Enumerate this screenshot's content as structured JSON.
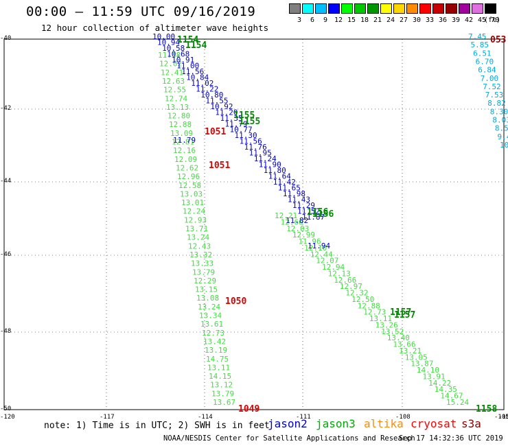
{
  "header": {
    "title": "00:00 – 11:59 UTC 09/16/2019",
    "subtitle": "12 hour collection of altimeter wave heights"
  },
  "legend": {
    "unit": "(ft)",
    "bins": [
      {
        "label": "3",
        "color": "#7f7f7f"
      },
      {
        "label": "6",
        "color": "#00ffff"
      },
      {
        "label": "9",
        "color": "#00bfff"
      },
      {
        "label": "12",
        "color": "#0000ff"
      },
      {
        "label": "15",
        "color": "#00ff00"
      },
      {
        "label": "18",
        "color": "#00c800"
      },
      {
        "label": "21",
        "color": "#009600"
      },
      {
        "label": "24",
        "color": "#ffff00"
      },
      {
        "label": "27",
        "color": "#ffd700"
      },
      {
        "label": "30",
        "color": "#ff8c00"
      },
      {
        "label": "33",
        "color": "#ff0000"
      },
      {
        "label": "36",
        "color": "#c80000"
      },
      {
        "label": "39",
        "color": "#960000"
      },
      {
        "label": "42",
        "color": "#a000a0"
      },
      {
        "label": "45",
        "color": "#e070e0"
      },
      {
        "label": "70",
        "color": "#000000"
      }
    ]
  },
  "axes": {
    "lat_labels": [
      "-40",
      "-42",
      "-44",
      "-46",
      "-48",
      "-50"
    ],
    "bottom_left": "-120",
    "lon_labels": [
      "-117",
      "-114",
      "-111",
      "-108",
      "-105"
    ],
    "right_edge": "-10"
  },
  "footer": {
    "note": "note: 1) Time is in UTC; 2) SWH is in feet",
    "sats": [
      {
        "label": "jason2",
        "color": "#0000cc"
      },
      {
        "label": "jason3",
        "color": "#00aa00"
      },
      {
        "label": "altika",
        "color": "#ff8c00"
      },
      {
        "label": "cryosat",
        "color": "#ff0000"
      },
      {
        "label": "s3a",
        "color": "#8b0000"
      }
    ],
    "credit": "NOAA/NESDIS Center for Satellite Applications and Research",
    "timestamp": "Sep 17 14:32:36 UTC 2019"
  },
  "tracks": [
    {
      "name": "jason3-east",
      "color": "#40dd40",
      "values": [
        "12.21",
        "12.60",
        "12.03",
        "12.99",
        "11.96",
        "12.10",
        "12.44",
        "12.07",
        "12.94",
        "12.13",
        "12.66",
        "12.97",
        "12.32",
        "12.50",
        "12.88",
        "12.73",
        "13.11",
        "13.26",
        "13.52",
        "13.40",
        "13.66",
        "13.21",
        "13.05",
        "13.87",
        "14.10",
        "13.91",
        "14.22",
        "14.35",
        "14.67",
        "15.24"
      ]
    },
    {
      "name": "jason3-west",
      "color": "#40dd40",
      "values": [
        "11.38",
        "12.02",
        "12.41",
        "12.63",
        "12.55",
        "12.74",
        "13.13",
        "12.80",
        "12.88",
        "13.09",
        "12.81",
        "12.16",
        "12.09",
        "12.62",
        "12.96",
        "12.58",
        "13.03",
        "13.01",
        "12.24",
        "12.93",
        "13.71",
        "13.24",
        "12.43",
        "13.32",
        "13.33",
        "13.79",
        "12.29",
        "13.15",
        "13.08",
        "13.24",
        "13.34",
        "13.61",
        "12.73",
        "13.42",
        "13.19",
        "14.75",
        "13.11",
        "14.15",
        "13.12",
        "13.79",
        "13.67"
      ]
    },
    {
      "name": "jason2-north",
      "color": "#0000cc",
      "values": [
        "10.00",
        "10.94",
        "10.58",
        "10.68",
        "10.91",
        "11.00",
        "11.56",
        "10.84",
        "11.02",
        "11.22",
        "10.80",
        "11.55",
        "10.92",
        "11.20",
        "11.35",
        "11.79",
        "10.77",
        "11.30",
        "11.56",
        "11.76",
        "11.95",
        "11.24",
        "11.90",
        "11.80",
        "11.64",
        "11.42",
        "11.65",
        "11.98",
        "11.43",
        "11.29",
        "11.52",
        "11.87"
      ]
    },
    {
      "name": "saral-east",
      "color": "#00aadd",
      "values": [
        "7.45",
        "5.85",
        "6.51",
        "6.70",
        "6.84",
        "7.00",
        "7.52",
        "7.53",
        "8.82",
        "8.30",
        "8.03",
        "8.5",
        "9.4",
        "10"
      ]
    }
  ],
  "passes": [
    {
      "label": "1154",
      "color": "#008800"
    },
    {
      "label": "1154",
      "color": "#008800"
    },
    {
      "label": "1155",
      "color": "#008800"
    },
    {
      "label": "1155",
      "color": "#008800"
    },
    {
      "label": "1051",
      "color": "#dd0000"
    },
    {
      "label": "1051",
      "color": "#dd0000"
    },
    {
      "label": "1156",
      "color": "#008800"
    },
    {
      "label": "1156",
      "color": "#008800"
    },
    {
      "label": "1050",
      "color": "#dd0000"
    },
    {
      "label": "1157",
      "color": "#008800"
    },
    {
      "label": "1157",
      "color": "#008800"
    },
    {
      "label": "1049",
      "color": "#dd0000"
    },
    {
      "label": "1158",
      "color": "#008800"
    },
    {
      "label": "053",
      "color": "#990000"
    }
  ],
  "singles": [
    {
      "label": "11.79",
      "color": "#0000cc"
    },
    {
      "label": "11.94",
      "color": "#0000cc"
    },
    {
      "label": "11.82",
      "color": "#0000cc"
    }
  ]
}
